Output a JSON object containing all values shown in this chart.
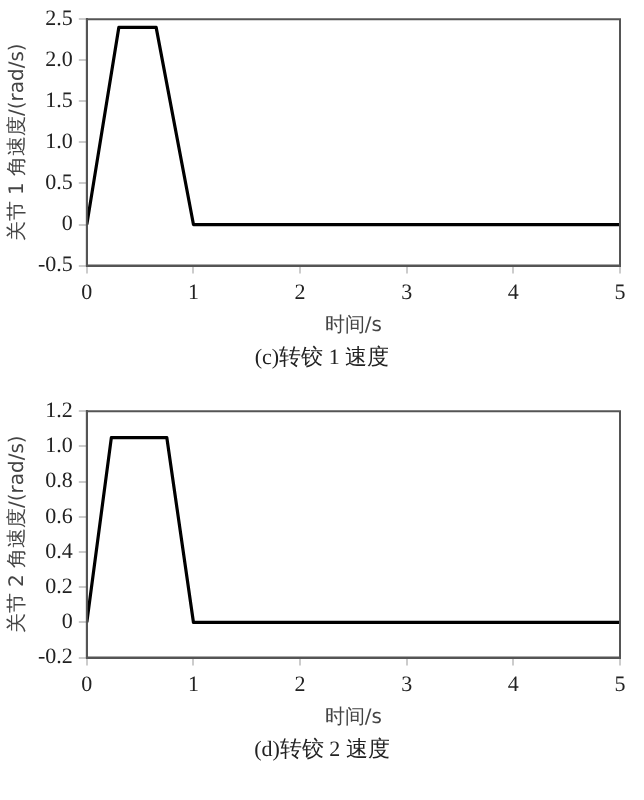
{
  "chart_data": [
    {
      "type": "line",
      "xlabel": "时间/s",
      "ylabel": "关节 1 角速度/(rad/s)",
      "x": [
        0,
        0.3,
        0.65,
        1,
        5
      ],
      "series": [
        {
          "color": "#000000",
          "values": [
            0,
            2.4,
            2.4,
            0,
            0
          ]
        }
      ],
      "xlim": [
        0,
        5
      ],
      "xticks": [
        0,
        1,
        2,
        3,
        4,
        5
      ],
      "ylim": [
        -0.5,
        2.5
      ],
      "yticks": [
        {
          "value": -0.5,
          "label": "-0.5"
        },
        0,
        {
          "value": 0.5,
          "label": "0.5"
        },
        {
          "value": 1,
          "label": "1.0"
        },
        {
          "value": 1.5,
          "label": "1.5"
        },
        {
          "value": 2,
          "label": "2.0"
        },
        {
          "value": 2.5,
          "label": "2.5"
        }
      ],
      "grid": false,
      "legend": false,
      "marker": "none",
      "line_style": "solid",
      "annotations": [
        "(c)转铰 1 速度"
      ]
    },
    {
      "type": "line",
      "xlabel": "时间/s",
      "ylabel": "关节 2 角速度/(rad/s)",
      "x": [
        0,
        0.23,
        0.75,
        1,
        5
      ],
      "series": [
        {
          "color": "#000000",
          "values": [
            0,
            1.05,
            1.05,
            0,
            0
          ]
        }
      ],
      "xlim": [
        0,
        5
      ],
      "xticks": [
        0,
        1,
        2,
        3,
        4,
        5
      ],
      "ylim": [
        -0.2,
        1.2
      ],
      "yticks": [
        {
          "value": -0.2,
          "label": "-0.2"
        },
        0,
        {
          "value": 0.2,
          "label": "0.2"
        },
        {
          "value": 0.4,
          "label": "0.4"
        },
        {
          "value": 0.6,
          "label": "0.6"
        },
        {
          "value": 0.8,
          "label": "0.8"
        },
        {
          "value": 1,
          "label": "1.0"
        },
        {
          "value": 1.2,
          "label": "1.2"
        }
      ],
      "grid": false,
      "legend": false,
      "marker": "none",
      "line_style": "solid",
      "annotations": [
        "(d)转铰 2 速度"
      ]
    }
  ]
}
